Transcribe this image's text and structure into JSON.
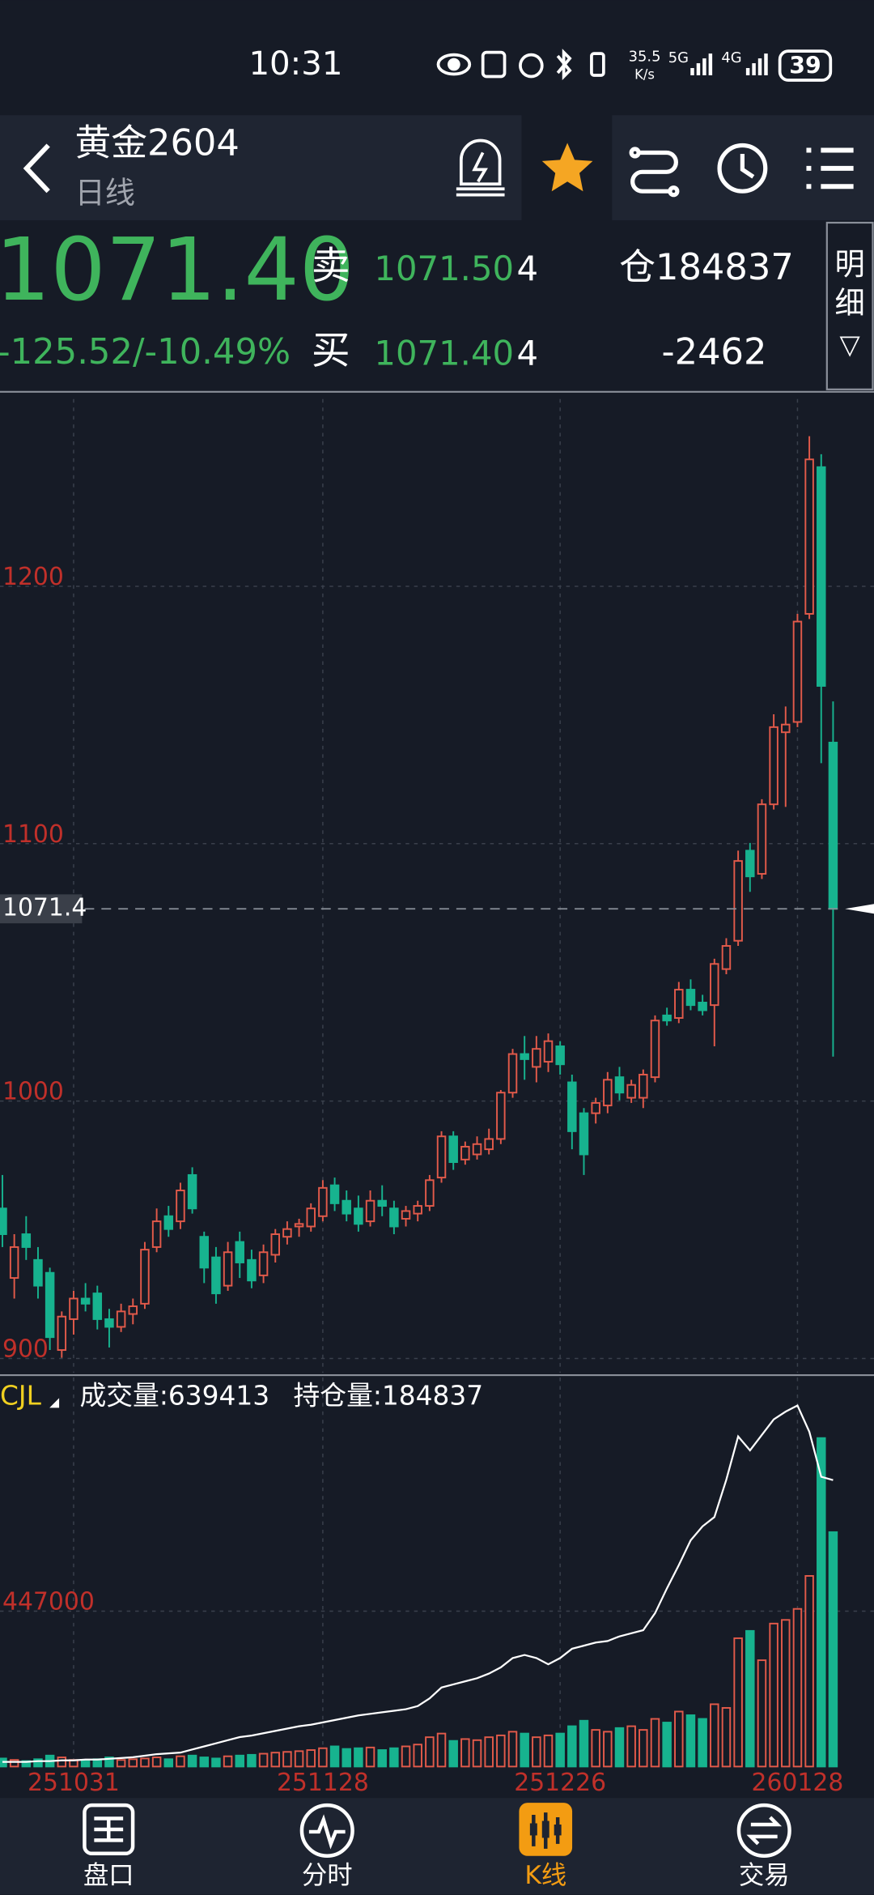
{
  "status_bar": {
    "time": "10:31",
    "speed": [
      "35.5",
      "K/s"
    ],
    "network": [
      "5G",
      "4G"
    ],
    "battery": "39"
  },
  "header": {
    "title": "黄金2604",
    "subtitle": "日线"
  },
  "quote": {
    "price": "1071.40",
    "change": "-125.52/-10.49%",
    "ask_label": "卖",
    "ask_price": "1071.50",
    "ask_volume": "4",
    "bid_label": "买",
    "bid_price": "1071.40",
    "bid_volume": "4",
    "open_interest": "仓184837",
    "oi_change": "-2462",
    "detail": [
      "明",
      "细"
    ],
    "detail_icon": "▽"
  },
  "nav": [
    "盘口",
    "分时",
    "K线",
    "交易"
  ],
  "chart_data": [
    {
      "type": "candlestick",
      "categories": [
        null,
        null,
        null,
        null,
        null,
        null,
        "251031",
        null,
        null,
        null,
        null,
        null,
        null,
        null,
        null,
        null,
        null,
        null,
        null,
        null,
        null,
        null,
        null,
        null,
        null,
        null,
        null,
        "251128",
        null,
        null,
        null,
        null,
        null,
        null,
        null,
        null,
        null,
        null,
        null,
        null,
        null,
        null,
        null,
        null,
        null,
        null,
        null,
        "251226",
        null,
        null,
        null,
        null,
        null,
        null,
        null,
        null,
        null,
        null,
        null,
        null,
        null,
        null,
        null,
        null,
        null,
        null,
        null,
        "260128",
        null,
        null,
        null
      ],
      "open": [
        955,
        928,
        945,
        935,
        930,
        900,
        912,
        920,
        922,
        912,
        909,
        914,
        918,
        940,
        952,
        950,
        968,
        944,
        936,
        925,
        942,
        935,
        929,
        937,
        944,
        948,
        948,
        952,
        964,
        958,
        955,
        950,
        958,
        955,
        951,
        953,
        956,
        967,
        983,
        974,
        976,
        978,
        982,
        1000,
        1015,
        1010,
        1012,
        1018,
        1004,
        992,
        992,
        995,
        1006,
        998,
        998,
        1006,
        1030,
        1029,
        1040,
        1035,
        1034,
        1048,
        1059,
        1094,
        1085,
        1112,
        1140,
        1144,
        1186,
        1243,
        1136
      ],
      "high": [
        968,
        945,
        952,
        940,
        932,
        915,
        923,
        926,
        925,
        916,
        918,
        920,
        942,
        955,
        956,
        965,
        971,
        946,
        940,
        942,
        946,
        939,
        941,
        947,
        950,
        951,
        957,
        966,
        967,
        962,
        960,
        962,
        964,
        958,
        956,
        958,
        968,
        985,
        985,
        981,
        983,
        986,
        1001,
        1017,
        1022,
        1022,
        1023,
        1020,
        1007,
        994,
        998,
        1008,
        1010,
        1005,
        1009,
        1030,
        1033,
        1043,
        1044,
        1038,
        1052,
        1060,
        1094,
        1097,
        1114,
        1147,
        1150,
        1186,
        1255,
        1248,
        1152
      ],
      "low": [
        940,
        920,
        935,
        920,
        900,
        897,
        906,
        915,
        908,
        901,
        907,
        910,
        916,
        938,
        944,
        947,
        953,
        926,
        918,
        923,
        928,
        924,
        926,
        934,
        941,
        944,
        946,
        950,
        954,
        950,
        946,
        948,
        952,
        945,
        948,
        950,
        954,
        965,
        970,
        972,
        974,
        976,
        980,
        998,
        1005,
        1004,
        1008,
        1007,
        978,
        968,
        988,
        992,
        997,
        996,
        994,
        1004,
        1026,
        1027,
        1032,
        1030,
        1018,
        1046,
        1057,
        1078,
        1083,
        1110,
        1111,
        1142,
        1184,
        1128,
        1014
      ],
      "close": [
        945,
        940,
        940,
        925,
        905,
        913,
        920,
        918,
        912,
        909,
        915,
        917,
        939,
        950,
        947,
        962,
        955,
        932,
        922,
        938,
        934,
        927,
        938,
        945,
        947,
        949,
        955,
        963,
        957,
        953,
        949,
        958,
        956,
        948,
        954,
        956,
        966,
        983,
        973,
        979,
        980,
        982,
        1000,
        1015,
        1013,
        1017,
        1020,
        1011,
        985,
        976,
        996,
        1005,
        1000,
        1003,
        1007,
        1028,
        1028,
        1040,
        1034,
        1032,
        1050,
        1057,
        1090,
        1084,
        1112,
        1142,
        1143,
        1183,
        1246,
        1158,
        1071.4
      ],
      "ylim": [
        894,
        1261
      ],
      "yticks": [
        900,
        1000,
        1100,
        1200
      ],
      "current_price": 1071.4,
      "colors": {
        "up": "#e25a4a",
        "down": "#17b38f"
      },
      "grid": true
    },
    {
      "type": "bar",
      "title": "CJL",
      "legend": [
        "成交量:639413",
        "持仓量:184837"
      ],
      "series": [
        {
          "values": [
            22000,
            18000,
            15000,
            20000,
            30000,
            25000,
            18000,
            15000,
            20000,
            25000,
            18000,
            20000,
            22000,
            25000,
            20000,
            28000,
            30000,
            25000,
            22000,
            28000,
            30000,
            32000,
            35000,
            38000,
            40000,
            42000,
            45000,
            50000,
            55000,
            48000,
            50000,
            52000,
            45000,
            50000,
            55000,
            60000,
            80000,
            90000,
            70000,
            75000,
            72000,
            80000,
            85000,
            95000,
            90000,
            80000,
            85000,
            90000,
            110000,
            125000,
            100000,
            95000,
            105000,
            110000,
            100000,
            130000,
            120000,
            150000,
            140000,
            130000,
            170000,
            160000,
            350000,
            370000,
            290000,
            390000,
            400000,
            430000,
            520000,
            896000,
            639413
          ]
        },
        {
          "type": "line",
          "color": "#ffffff",
          "axis": "y2",
          "values": [
            3000,
            3000,
            3000,
            3500,
            3500,
            4000,
            4000,
            4500,
            4500,
            5000,
            5500,
            6000,
            7000,
            8000,
            8500,
            9000,
            11000,
            13000,
            15000,
            17000,
            19000,
            20000,
            21500,
            23000,
            24500,
            26000,
            27000,
            28500,
            30000,
            31500,
            33000,
            34000,
            35000,
            36000,
            37000,
            39000,
            44000,
            51000,
            53000,
            55000,
            57000,
            60000,
            64000,
            70000,
            72000,
            70000,
            66000,
            70000,
            76000,
            78000,
            80000,
            81000,
            84000,
            86000,
            88000,
            99000,
            115000,
            130000,
            146000,
            155000,
            161000,
            185000,
            213000,
            204000,
            214000,
            224000,
            229000,
            233000,
            216000,
            187000,
            184837
          ]
        }
      ],
      "ylim": [
        0,
        1061000
      ],
      "yticks": [
        447000
      ],
      "y2lim": [
        0,
        251000
      ],
      "grid": true
    }
  ]
}
